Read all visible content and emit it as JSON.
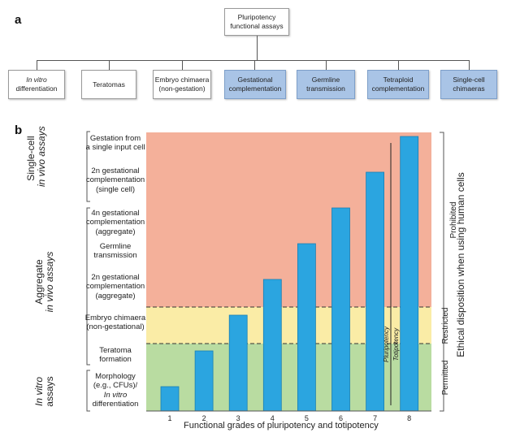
{
  "panel_a": {
    "letter": "a",
    "root": {
      "line1": "Pluripotency",
      "line2": "functional assays"
    },
    "boxes": [
      {
        "line1": "In vitro",
        "line2": "differentiation",
        "style": "white"
      },
      {
        "line1": "Teratomas",
        "line2": "",
        "style": "white"
      },
      {
        "line1": "Embryo chimaera",
        "line2": "(non-gestation)",
        "style": "white"
      },
      {
        "line1": "Gestational",
        "line2": "complementation",
        "style": "blue"
      },
      {
        "line1": "Germline",
        "line2": "transmission",
        "style": "blue"
      },
      {
        "line1": "Tetraploid",
        "line2": "complementation",
        "style": "blue"
      },
      {
        "line1": "Single-cell",
        "line2": "chimaeras",
        "style": "blue"
      }
    ]
  },
  "panel_b": {
    "letter": "b",
    "group_labels": {
      "single_cell": {
        "line1": "Single-cell",
        "line2": "in vivo assays"
      },
      "aggregate": {
        "line1": "Aggregate",
        "line2": "in vivo assays"
      },
      "in_vitro": {
        "line1": "In vitro",
        "line2": "assays"
      }
    },
    "assays": [
      {
        "lines": [
          "Gestation from",
          "a single input cell"
        ]
      },
      {
        "lines": [
          "2n gestational",
          "complementation",
          "(single cell)"
        ]
      },
      {
        "lines": [
          "4n gestational",
          "complementation",
          "(aggregate)"
        ]
      },
      {
        "lines": [
          "Germline",
          "transmission"
        ]
      },
      {
        "lines": [
          "2n gestational",
          "complementation",
          "(aggregate)"
        ]
      },
      {
        "lines": [
          "Embryo chimaera",
          "(non-gestational)"
        ]
      },
      {
        "lines": [
          "Teratoma",
          "formation"
        ]
      },
      {
        "lines": [
          "Morphology",
          "(e.g., CFUs)/",
          "In vitro",
          "differentiation"
        ]
      }
    ],
    "zones": [
      {
        "label": "Prohibited",
        "color": "#f4b09a"
      },
      {
        "label": "Restricted",
        "color": "#faeca6"
      },
      {
        "label": "Permitted",
        "color": "#b9dca1"
      }
    ],
    "ethics_label": "Ethical disposition when using human cells",
    "pluripotency_label": "Pluripotency",
    "totipotency_label": "Totipotency",
    "bar_color": "#2ba5e0"
  },
  "chart_data": {
    "type": "bar",
    "categories": [
      "1",
      "2",
      "3",
      "4",
      "5",
      "6",
      "7",
      "8"
    ],
    "values": [
      1,
      2,
      3,
      4,
      5,
      6,
      7,
      8
    ],
    "xlabel": "Functional grades of pluripotency and totipotency",
    "ylabel": "",
    "ylim": [
      0,
      8
    ],
    "grid": false,
    "zones": [
      {
        "label": "Permitted",
        "range": [
          0,
          2
        ]
      },
      {
        "label": "Restricted",
        "range": [
          2,
          3
        ]
      },
      {
        "label": "Prohibited",
        "range": [
          3,
          8
        ]
      }
    ]
  }
}
